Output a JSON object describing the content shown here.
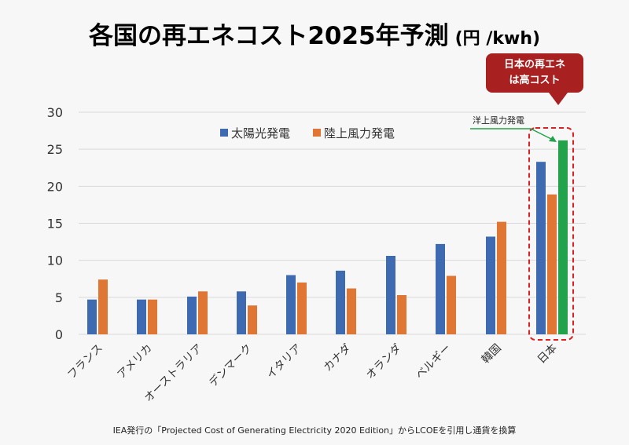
{
  "title": "各国の再エネコスト2025年予測",
  "unit": "(円 /kwh)",
  "callout": [
    "日本の再エネ",
    "は高コスト"
  ],
  "offshore_label": "洋上風力発電",
  "footnote": "IEA発行の「Projected Cost of Generating Electricity 2020 Edition」からLCOEを引用し通貨を換算",
  "chart_data": {
    "type": "bar",
    "title": "各国の再エネコスト2025年予測 (円 /kwh)",
    "categories": [
      "フランス",
      "アメリカ",
      "オーストラリア",
      "デンマーク",
      "イタリア",
      "カナダ",
      "オランダ",
      "ベルギー",
      "韓国",
      "日本"
    ],
    "series": [
      {
        "name": "太陽光発電",
        "color": "#3d6ab0",
        "values": [
          4.7,
          4.7,
          5.1,
          5.8,
          8.0,
          8.6,
          10.6,
          12.2,
          13.2,
          23.3
        ]
      },
      {
        "name": "陸上風力発電",
        "color": "#df7633",
        "values": [
          7.4,
          4.7,
          5.8,
          3.9,
          7.0,
          6.2,
          5.3,
          7.9,
          15.2,
          18.9
        ]
      },
      {
        "name": "洋上風力発電",
        "color": "#22a34b",
        "values": [
          null,
          null,
          null,
          null,
          null,
          null,
          null,
          null,
          null,
          26.2
        ]
      }
    ],
    "ylim": [
      0,
      30
    ],
    "yticks": [
      0,
      5,
      10,
      15,
      20,
      25,
      30
    ],
    "legend": "top-center",
    "grid": true
  }
}
